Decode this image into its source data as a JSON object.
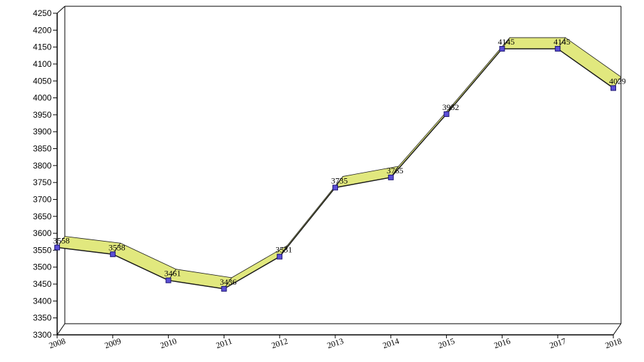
{
  "chart_data": {
    "type": "line",
    "title": "",
    "xlabel": "",
    "ylabel": "",
    "categories": [
      "2008",
      "2009",
      "2010",
      "2011",
      "2012",
      "2013",
      "2014",
      "2015",
      "2016",
      "2017",
      "2018"
    ],
    "series": [
      {
        "values": [
          3558,
          3538,
          3461,
          3436,
          3531,
          3735,
          3765,
          3952,
          4145,
          4145,
          4029
        ]
      }
    ],
    "data_labels": [
      "3558",
      "3538",
      "3461",
      "3436",
      "3531",
      "3735",
      "3765",
      "3952",
      "4145",
      "4145",
      "4029"
    ],
    "ylim": [
      3300,
      4250
    ],
    "ytick_step": 50,
    "grid": false,
    "legend": "none",
    "style": "3d-ribbon",
    "colors": {
      "ribbon_fill": "#e1e87e",
      "line": "#1a1a1a",
      "marker_fill": "#5b4fd6",
      "marker_stroke": "#1c1470",
      "axis": "#000000"
    }
  }
}
